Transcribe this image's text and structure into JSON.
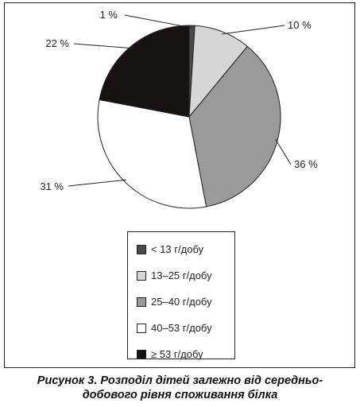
{
  "chart_data": {
    "type": "pie",
    "categories": [
      "< 13 г/добу",
      "13–25  г/добу",
      "25–40  г/добу",
      "40–53  г/добу",
      "≥ 53  г/добу"
    ],
    "values": [
      1,
      10,
      36,
      31,
      22
    ],
    "value_labels": [
      "1 %",
      "10 %",
      "36 %",
      "31 %",
      "22 %"
    ],
    "colors": [
      "#4a4a4a",
      "#d6d6d6",
      "#9a9a9a",
      "#ffffff",
      "#1a1212"
    ],
    "legend_position": "bottom"
  },
  "caption": {
    "line1": "Рисунок 3. Розподіл дітей залежно від середньо-",
    "line2": "добового рівня споживання білка"
  }
}
